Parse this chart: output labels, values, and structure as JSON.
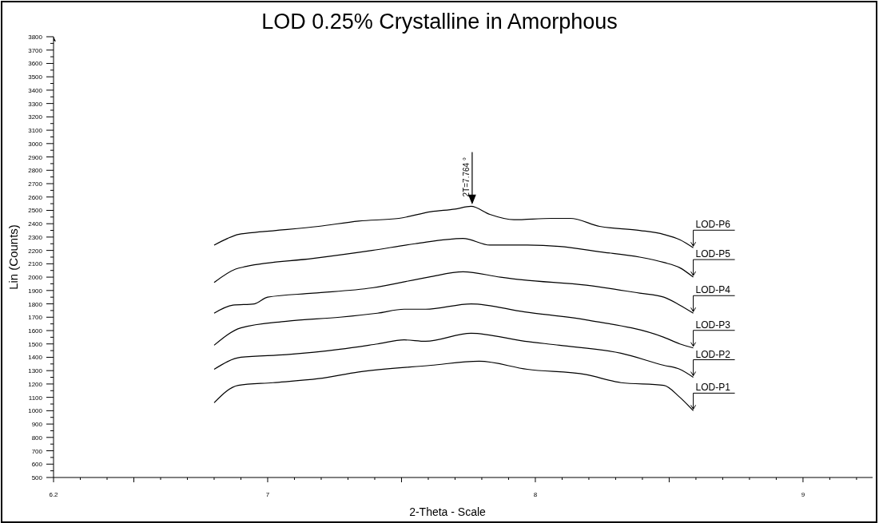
{
  "chart_data": {
    "type": "line",
    "title": "LOD 0.25% Crystalline in Amorphous",
    "xlabel": "2-Theta - Scale",
    "ylabel": "Lin (Counts)",
    "xlim": [
      6.2,
      9.26
    ],
    "ylim": [
      500,
      3800
    ],
    "xticks": [
      6.2,
      {
        "value": 6.3,
        "label": null
      },
      {
        "value": 6.4,
        "label": null
      },
      {
        "value": 6.5,
        "label": null
      },
      {
        "value": 6.6,
        "label": null
      },
      {
        "value": 6.7,
        "label": null
      },
      {
        "value": 6.8,
        "label": null
      },
      {
        "value": 6.9,
        "label": null
      },
      7,
      {
        "value": 7.1,
        "label": null
      },
      {
        "value": 7.2,
        "label": null
      },
      {
        "value": 7.3,
        "label": null
      },
      {
        "value": 7.4,
        "label": null
      },
      {
        "value": 7.5,
        "label": null
      },
      {
        "value": 7.6,
        "label": null
      },
      {
        "value": 7.7,
        "label": null
      },
      {
        "value": 7.8,
        "label": null
      },
      {
        "value": 7.9,
        "label": null
      },
      8,
      {
        "value": 8.1,
        "label": null
      },
      {
        "value": 8.2,
        "label": null
      },
      {
        "value": 8.3,
        "label": null
      },
      {
        "value": 8.4,
        "label": null
      },
      {
        "value": 8.5,
        "label": null
      },
      {
        "value": 8.6,
        "label": null
      },
      {
        "value": 8.7,
        "label": null
      },
      {
        "value": 8.8,
        "label": null
      },
      {
        "value": 8.9,
        "label": null
      },
      9,
      {
        "value": 9.1,
        "label": null
      },
      {
        "value": 9.2,
        "label": null
      }
    ],
    "yticks": [
      500,
      600,
      700,
      800,
      900,
      1000,
      1100,
      1200,
      1300,
      1400,
      1500,
      1600,
      1700,
      1800,
      1900,
      2000,
      2100,
      2200,
      2300,
      2400,
      2500,
      2600,
      2700,
      2800,
      2900,
      3000,
      3100,
      3200,
      3300,
      3400,
      3500,
      3600,
      3700,
      3800
    ],
    "grid": false,
    "legend": "right",
    "marker": "none",
    "line_style": "solid",
    "annotations": [
      {
        "text": "2T=7.764 °",
        "x": 7.764,
        "y": 2530
      }
    ],
    "series": [
      {
        "name": "LOD-P6",
        "color": "#000000",
        "x": [
          6.8,
          6.85,
          6.89,
          6.98,
          7.19,
          7.34,
          7.49,
          7.61,
          7.7,
          7.76,
          7.83,
          7.92,
          8.06,
          8.13,
          8.24,
          8.39,
          8.48,
          8.54,
          8.59
        ],
        "values": [
          2240,
          2290,
          2320,
          2340,
          2380,
          2420,
          2440,
          2490,
          2510,
          2530,
          2470,
          2430,
          2440,
          2440,
          2380,
          2350,
          2320,
          2280,
          2220
        ]
      },
      {
        "name": "LOD-P5",
        "color": "#000000",
        "x": [
          6.8,
          6.88,
          6.92,
          7.17,
          7.39,
          7.55,
          7.73,
          7.83,
          7.97,
          8.09,
          8.24,
          8.39,
          8.48,
          8.54,
          8.59
        ],
        "values": [
          1960,
          2060,
          2080,
          2140,
          2200,
          2250,
          2290,
          2240,
          2240,
          2230,
          2190,
          2150,
          2110,
          2070,
          2000
        ]
      },
      {
        "name": "LOD-P4",
        "color": "#000000",
        "x": [
          6.8,
          6.87,
          6.95,
          7.0,
          7.17,
          7.39,
          7.6,
          7.73,
          7.87,
          7.95,
          8.19,
          8.39,
          8.48,
          8.54,
          8.59
        ],
        "values": [
          1730,
          1790,
          1800,
          1850,
          1880,
          1920,
          2000,
          2040,
          2000,
          1980,
          1940,
          1880,
          1850,
          1790,
          1730
        ]
      },
      {
        "name": "LOD-P3",
        "color": "#000000",
        "x": [
          6.8,
          6.9,
          7.07,
          7.27,
          7.41,
          7.51,
          7.59,
          7.76,
          7.96,
          8.19,
          8.48,
          8.54,
          8.59
        ],
        "values": [
          1490,
          1620,
          1670,
          1700,
          1730,
          1760,
          1760,
          1800,
          1740,
          1680,
          1550,
          1500,
          1470
        ]
      },
      {
        "name": "LOD-P2",
        "color": "#000000",
        "x": [
          6.8,
          6.9,
          7.07,
          7.27,
          7.41,
          7.51,
          7.59,
          7.76,
          7.96,
          8.09,
          8.32,
          8.48,
          8.54,
          8.59
        ],
        "values": [
          1310,
          1400,
          1420,
          1460,
          1500,
          1530,
          1520,
          1580,
          1520,
          1490,
          1430,
          1340,
          1310,
          1250
        ]
      },
      {
        "name": "LOD-P1",
        "color": "#000000",
        "x": [
          6.8,
          6.89,
          7.02,
          7.19,
          7.34,
          7.61,
          7.79,
          7.97,
          8.19,
          8.32,
          8.48,
          8.54,
          8.59
        ],
        "values": [
          1060,
          1190,
          1210,
          1240,
          1290,
          1340,
          1370,
          1310,
          1270,
          1210,
          1190,
          1100,
          1000
        ]
      }
    ]
  }
}
